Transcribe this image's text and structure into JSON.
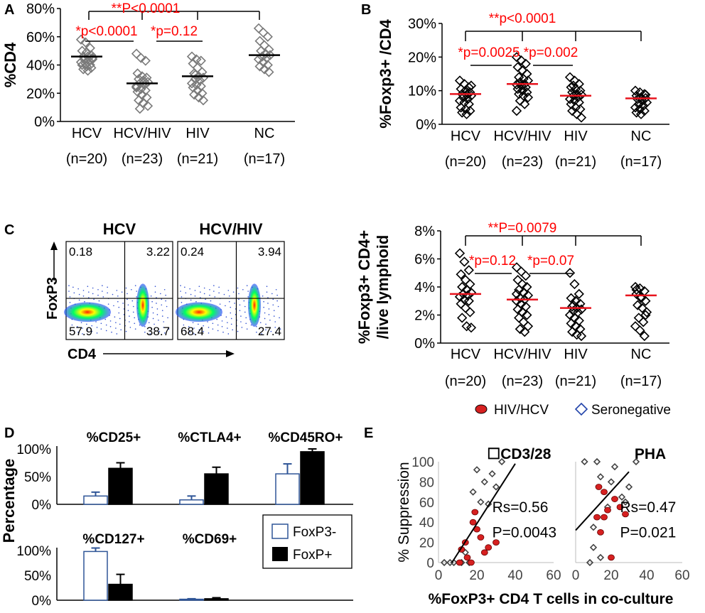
{
  "colors": {
    "red": "#e8141e",
    "sig_red": "#ff0000",
    "black": "#000000",
    "gray": "#7a7a7a",
    "blue": "#2244aa",
    "pt_red": "#d62020"
  },
  "panels": {
    "A": "A",
    "B": "B",
    "C": "C",
    "D": "D",
    "E": "E"
  },
  "chart_data": [
    {
      "id": "A",
      "type": "scatter",
      "ylabel": "%CD4",
      "ylim": [
        0,
        80
      ],
      "yticks": [
        "0%",
        "20%",
        "40%",
        "60%",
        "80%"
      ],
      "categories": [
        "HCV",
        "HCV/HIV",
        "HIV",
        "NC"
      ],
      "ns": [
        "(n=20)",
        "(n=23)",
        "(n=21)",
        "(n=17)"
      ],
      "medians": [
        46,
        27,
        32,
        47
      ],
      "points": [
        [
          58,
          56,
          52,
          50,
          49,
          47,
          46,
          46,
          45,
          44,
          43,
          42,
          41,
          40,
          40,
          39,
          38,
          37,
          36,
          44
        ],
        [
          48,
          45,
          43,
          34,
          32,
          31,
          30,
          29,
          28,
          27,
          26,
          25,
          23,
          22,
          21,
          19,
          17,
          15,
          13,
          11,
          9,
          28,
          24
        ],
        [
          46,
          44,
          43,
          41,
          38,
          35,
          34,
          32,
          31,
          30,
          29,
          27,
          26,
          25,
          24,
          22,
          20,
          19,
          17,
          15,
          33
        ],
        [
          66,
          63,
          60,
          57,
          54,
          51,
          50,
          48,
          47,
          46,
          45,
          44,
          42,
          40,
          39,
          37,
          35
        ]
      ],
      "annotations": [
        "**P<0.0001",
        "*p<0.0001",
        "*p=0.12"
      ]
    },
    {
      "id": "B",
      "type": "scatter",
      "ylabel": "%Foxp3+ /CD4",
      "ylim": [
        0,
        30
      ],
      "yticks": [
        "0%",
        "10%",
        "20%",
        "30%"
      ],
      "categories": [
        "HCV",
        "HCV/HIV",
        "HIV",
        "NC"
      ],
      "ns": [
        "(n=20)",
        "(n=23)",
        "(n=21)",
        "(n=17)"
      ],
      "medians": [
        9,
        12,
        8.5,
        7.7
      ],
      "points": [
        [
          13,
          12,
          11,
          10.5,
          10,
          9.5,
          9,
          8.8,
          8.5,
          8,
          7.5,
          7,
          6.5,
          6,
          5,
          4.5,
          4,
          3.5,
          3,
          11.5
        ],
        [
          20,
          19,
          18,
          17,
          16,
          15,
          14,
          13.5,
          13,
          12.5,
          12,
          11.8,
          11.5,
          11,
          10.5,
          10,
          9.5,
          9,
          8.5,
          8,
          7,
          6,
          4
        ],
        [
          14,
          13,
          12,
          11,
          10.5,
          10,
          9.5,
          9,
          8.8,
          8.5,
          8,
          7.5,
          7,
          6.5,
          6,
          5,
          4.5,
          4,
          3,
          2,
          11.5
        ],
        [
          10,
          9.5,
          9,
          8.5,
          8,
          7.8,
          7.5,
          7,
          6.5,
          6,
          5.5,
          5,
          4.5,
          4,
          3.5,
          3,
          8.8
        ]
      ],
      "annotations": [
        "**p<0.0001",
        "*p=0.0025",
        "*p=0.002"
      ]
    },
    {
      "id": "C2",
      "type": "scatter",
      "ylabel": "%Foxp3+ CD4+",
      "ylabel2": "/live lymphoid",
      "ylim": [
        0,
        8
      ],
      "yticks": [
        "0%",
        "2%",
        "4%",
        "6%",
        "8%"
      ],
      "categories": [
        "HCV",
        "HCV/HIV",
        "HIV",
        "NC"
      ],
      "ns": [
        "(n=20)",
        "(n=23)",
        "(n=21)",
        "(n=17)"
      ],
      "medians": [
        3.5,
        3.1,
        2.5,
        3.4
      ],
      "points": [
        [
          6.4,
          5.8,
          5.2,
          4.9,
          4.5,
          4.2,
          4.0,
          3.8,
          3.6,
          3.5,
          3.4,
          3.3,
          3.1,
          3.0,
          2.8,
          2.5,
          2.2,
          1.8,
          1.2,
          1.1
        ],
        [
          5.4,
          5.1,
          4.8,
          4.5,
          4.2,
          4.0,
          3.8,
          3.6,
          3.4,
          3.2,
          3.1,
          3.0,
          2.8,
          2.6,
          2.4,
          2.2,
          2.0,
          1.8,
          1.5,
          1.2,
          1.0,
          0.8,
          3.5
        ],
        [
          5.0,
          4.2,
          3.5,
          3.2,
          3.0,
          2.8,
          2.6,
          2.5,
          2.4,
          2.3,
          2.2,
          2.0,
          1.8,
          1.6,
          1.4,
          1.2,
          1.0,
          0.8,
          0.6,
          0.5,
          2.7
        ],
        [
          4.0,
          3.9,
          3.7,
          3.5,
          3.3,
          3.0,
          2.7,
          2.5,
          2.2,
          1.8,
          1.5,
          1.2,
          0.9,
          0.5,
          3.8,
          3.2,
          2.0
        ]
      ],
      "annotations": [
        "**P=0.0079",
        "*p=0.12",
        "*p=0.07"
      ]
    },
    {
      "id": "C1",
      "type": "flow",
      "titles": [
        "HCV",
        "HCV/HIV"
      ],
      "ylabel": "FoxP3",
      "xlabel": "CD4",
      "quadrants": [
        [
          "0.18",
          "3.22",
          "57.9",
          "38.7"
        ],
        [
          "0.24",
          "3.94",
          "68.4",
          "27.4"
        ]
      ]
    },
    {
      "id": "D",
      "type": "bar",
      "ylabel": "Percentage",
      "yticks": [
        "0%",
        "50%",
        "100%"
      ],
      "groups": [
        "%CD25+",
        "%CTLA4+",
        "%CD45RO+",
        "%CD127+",
        "%CD69+"
      ],
      "series": [
        {
          "name": "FoxP3-",
          "values": [
            15,
            8,
            55,
            98,
            2
          ],
          "err": [
            7,
            7,
            18,
            7,
            1
          ]
        },
        {
          "name": "FoxP+",
          "values": [
            65,
            55,
            95,
            32,
            3
          ],
          "err": [
            10,
            12,
            5,
            20,
            2
          ]
        }
      ]
    },
    {
      "id": "E1",
      "type": "scatter",
      "title": "☐CD3/28",
      "ylabel": "% Suppression",
      "xlim": [
        0,
        60
      ],
      "ylim": [
        0,
        100
      ],
      "xticks": [
        "0",
        "20",
        "40",
        "60"
      ],
      "yticks": [
        "0",
        "20",
        "40",
        "60",
        "80",
        "100"
      ],
      "open": [
        [
          3,
          0
        ],
        [
          6,
          0
        ],
        [
          8,
          0
        ],
        [
          12,
          0
        ],
        [
          16,
          0
        ],
        [
          20,
          92
        ],
        [
          24,
          80
        ],
        [
          28,
          88
        ],
        [
          18,
          70
        ],
        [
          22,
          60
        ],
        [
          26,
          58
        ],
        [
          14,
          10
        ],
        [
          33,
          100
        ],
        [
          30,
          75
        ]
      ],
      "red": [
        [
          12,
          13
        ],
        [
          15,
          5
        ],
        [
          18,
          40
        ],
        [
          20,
          33
        ],
        [
          22,
          25
        ],
        [
          24,
          10
        ],
        [
          26,
          15
        ],
        [
          14,
          20
        ],
        [
          19,
          50
        ],
        [
          30,
          20
        ],
        [
          17,
          0
        ],
        [
          11,
          0
        ]
      ],
      "annotation": [
        "Rs=0.56",
        "P=0.0043"
      ]
    },
    {
      "id": "E2",
      "type": "scatter",
      "title": "PHA",
      "xlim": [
        0,
        60
      ],
      "ylim": [
        0,
        100
      ],
      "xticks": [
        "0",
        "20",
        "40",
        "60"
      ],
      "open": [
        [
          8,
          0
        ],
        [
          10,
          35
        ],
        [
          5,
          100
        ],
        [
          14,
          85
        ],
        [
          20,
          80
        ],
        [
          22,
          95
        ],
        [
          26,
          65
        ],
        [
          28,
          60
        ],
        [
          12,
          100
        ],
        [
          30,
          75
        ],
        [
          10,
          15
        ],
        [
          14,
          5
        ],
        [
          34,
          100
        ],
        [
          18,
          55
        ]
      ],
      "red": [
        [
          12,
          45
        ],
        [
          14,
          30
        ],
        [
          16,
          70
        ],
        [
          18,
          52
        ],
        [
          22,
          63
        ],
        [
          25,
          55
        ],
        [
          28,
          48
        ],
        [
          20,
          5
        ],
        [
          13,
          75
        ],
        [
          16,
          45
        ]
      ],
      "annotation": [
        "Rs=0.47",
        "P=0.021"
      ]
    }
  ],
  "legend": {
    "red": "HIV/HCV",
    "open": "Seronegative"
  },
  "legendD": {
    "open": "FoxP3-",
    "filled": "FoxP+"
  },
  "xlabelE": "%FoxP3+ CD4 T cells in co-culture"
}
